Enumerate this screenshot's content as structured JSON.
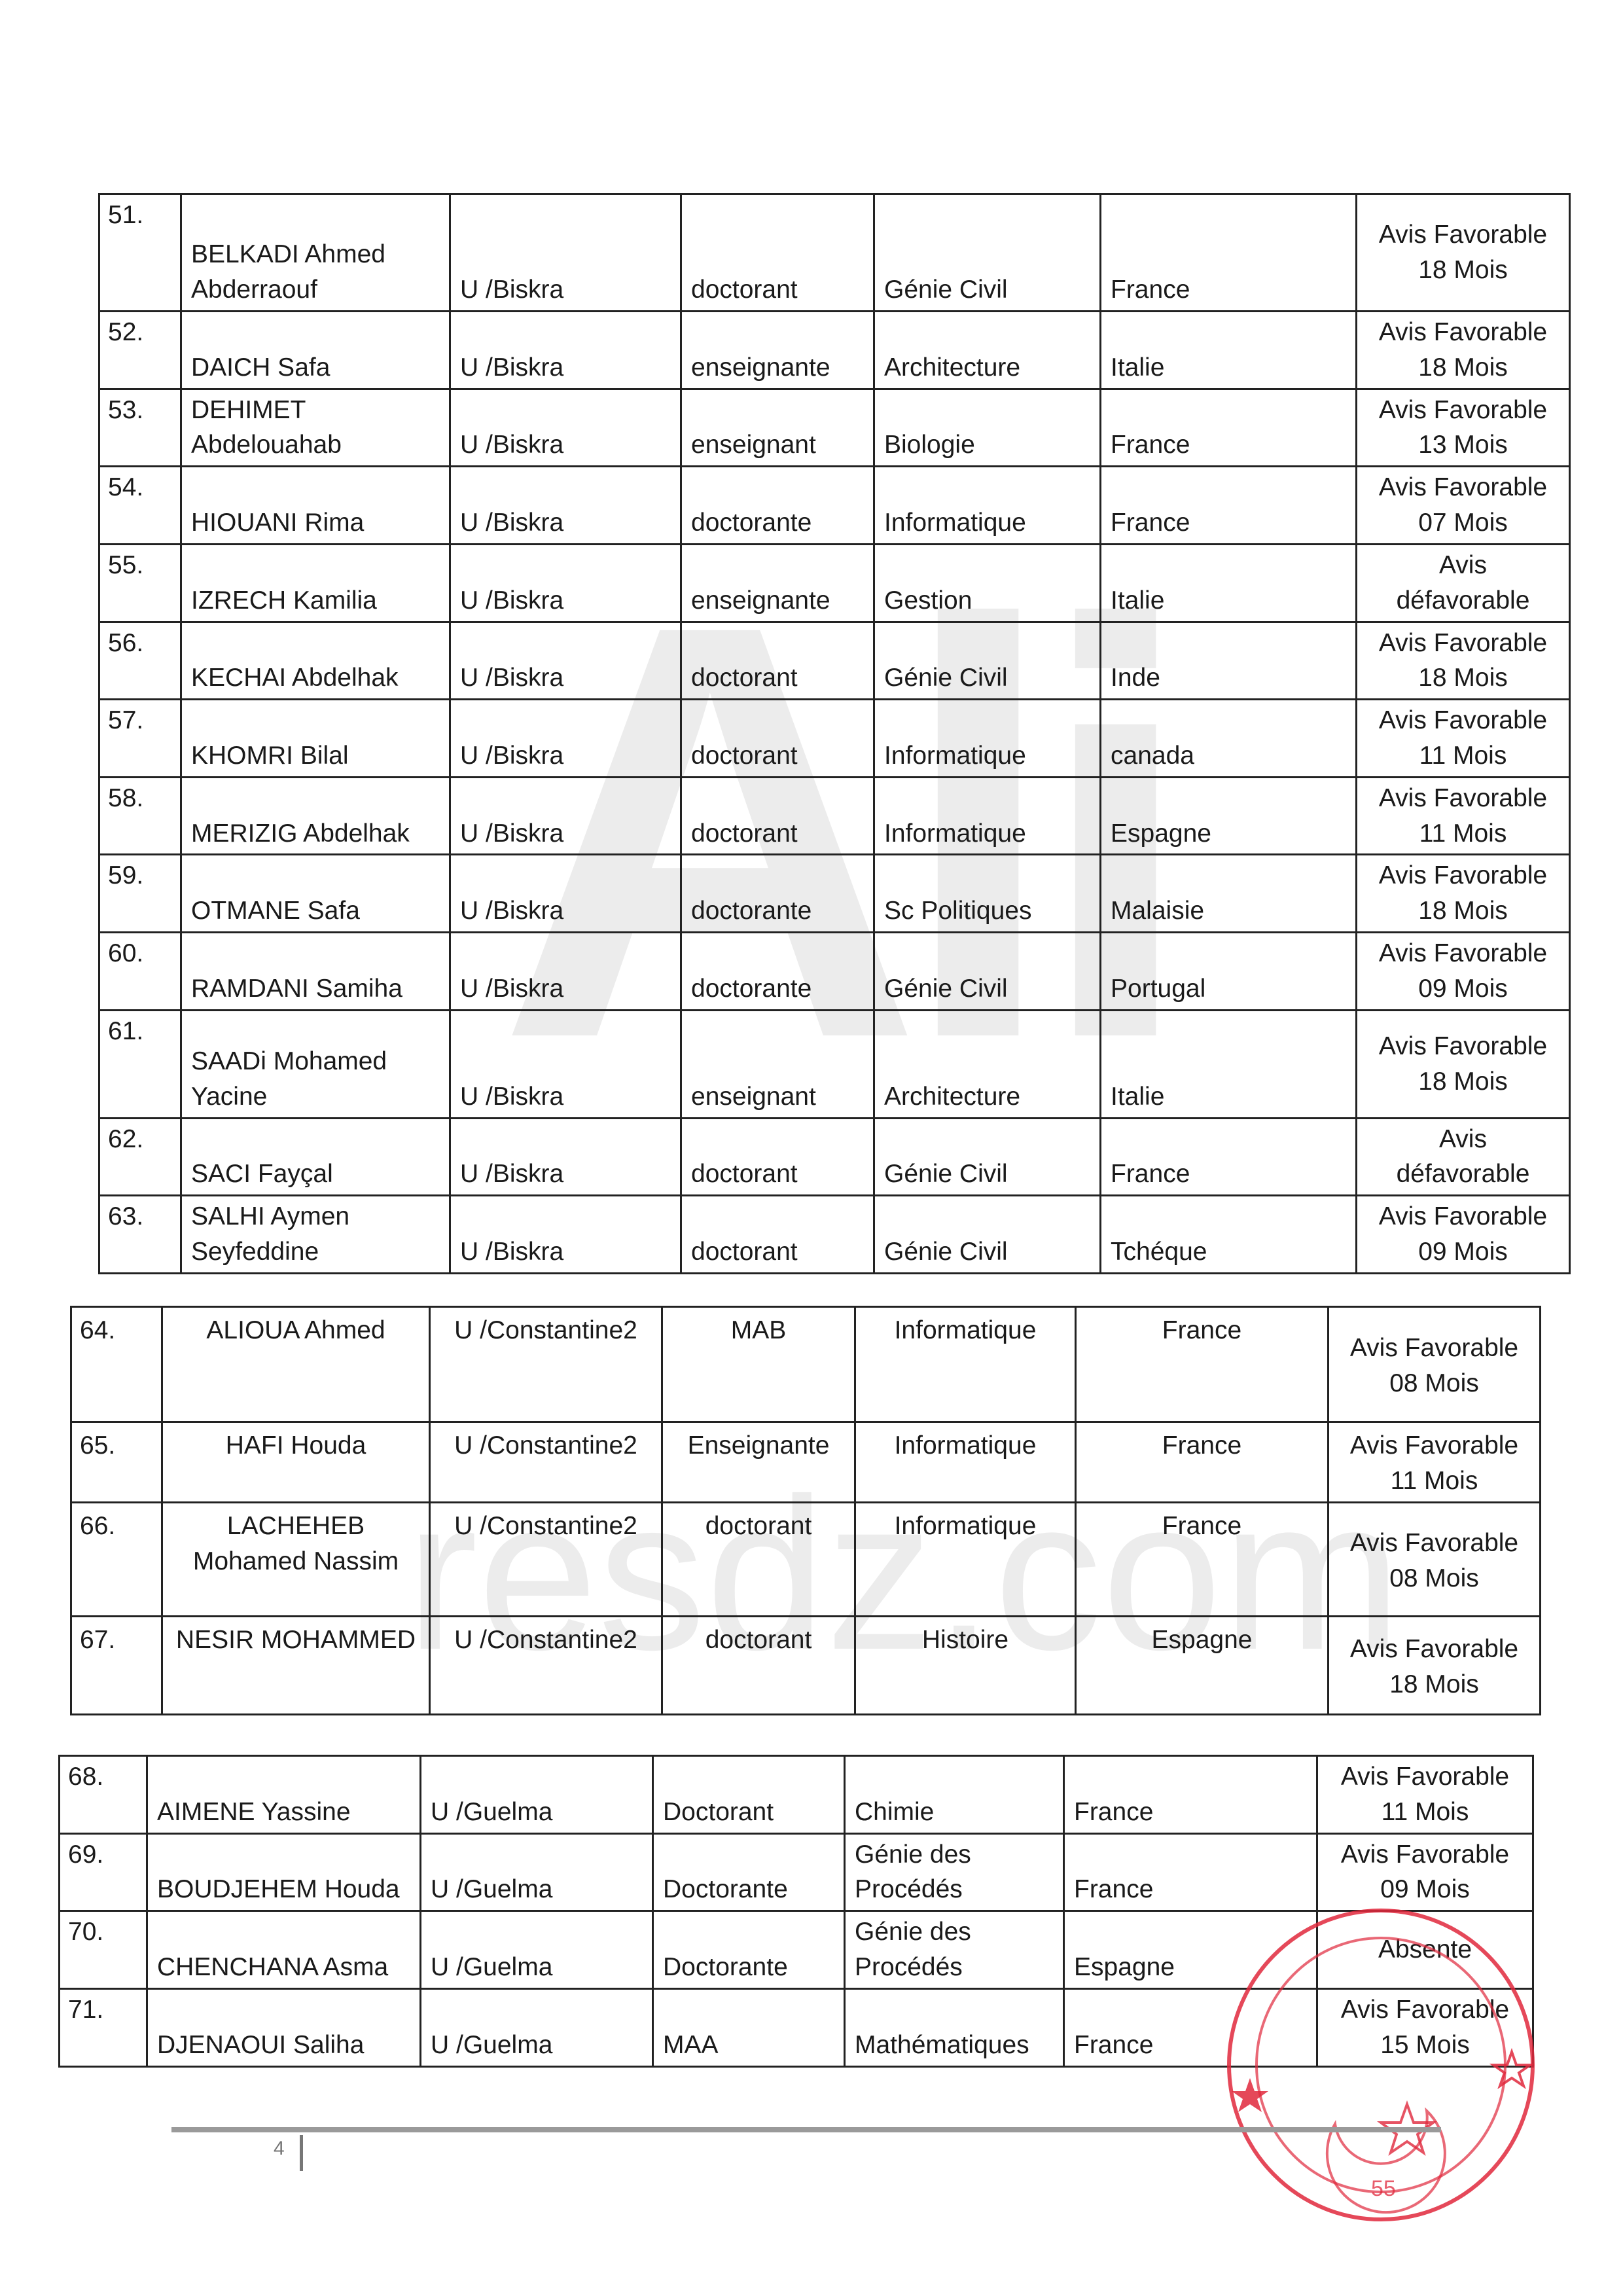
{
  "tables": [
    {
      "rows": [
        {
          "num": "51.",
          "name": "BELKADI Ahmed\nAbderraouf",
          "univ": "U /Biskra",
          "status": "doctorant",
          "field": "Génie Civil",
          "country": "France",
          "avis": "Avis Favorable\n18 Mois"
        },
        {
          "num": "52.",
          "name": "DAICH Safa",
          "univ": "U /Biskra",
          "status": "enseignante",
          "field": "Architecture",
          "country": "Italie",
          "avis": "Avis Favorable\n18 Mois"
        },
        {
          "num": "53.",
          "name": "DEHIMET\nAbdelouahab",
          "univ": "U /Biskra",
          "status": "enseignant",
          "field": "Biologie",
          "country": "France",
          "avis": "Avis Favorable\n13  Mois"
        },
        {
          "num": "54.",
          "name": "HIOUANI Rima",
          "univ": "U /Biskra",
          "status": "doctorante",
          "field": "Informatique",
          "country": "France",
          "avis": "Avis Favorable\n07 Mois"
        },
        {
          "num": "55.",
          "name": "IZRECH Kamilia",
          "univ": "U /Biskra",
          "status": "enseignante",
          "field": "Gestion",
          "country": "Italie",
          "avis": "Avis\ndéfavorable"
        },
        {
          "num": "56.",
          "name": "KECHAI Abdelhak",
          "univ": "U /Biskra",
          "status": "doctorant",
          "field": "Génie Civil",
          "country": "Inde",
          "avis": "Avis Favorable\n18 Mois"
        },
        {
          "num": "57.",
          "name": "KHOMRI Bilal",
          "univ": "U /Biskra",
          "status": "doctorant",
          "field": "Informatique",
          "country": "canada",
          "avis": "Avis Favorable\n11 Mois"
        },
        {
          "num": "58.",
          "name": "MERIZIG Abdelhak",
          "univ": "U /Biskra",
          "status": "doctorant",
          "field": "Informatique",
          "country": "Espagne",
          "avis": "Avis Favorable\n11 Mois"
        },
        {
          "num": "59.",
          "name": "OTMANE Safa",
          "univ": "U /Biskra",
          "status": "doctorante",
          "field": "Sc Politiques",
          "country": "Malaisie",
          "avis": "Avis Favorable\n18 Mois"
        },
        {
          "num": "60.",
          "name": "RAMDANI Samiha",
          "univ": "U /Biskra",
          "status": "doctorante",
          "field": "Génie Civil",
          "country": "Portugal",
          "avis": "Avis Favorable\n09 Mois"
        },
        {
          "num": "61.",
          "name": "SAADi Mohamed\nYacine",
          "univ": "U /Biskra",
          "status": "enseignant",
          "field": "Architecture",
          "country": "Italie",
          "avis": "Avis Favorable\n18 Mois"
        },
        {
          "num": "62.",
          "name": "SACI Fayçal",
          "univ": "U /Biskra",
          "status": "doctorant",
          "field": "Génie Civil",
          "country": "France",
          "avis": "Avis\ndéfavorable"
        },
        {
          "num": "63.",
          "name": "SALHI Aymen\nSeyfeddine",
          "univ": "U /Biskra",
          "status": "doctorant",
          "field": "Génie Civil",
          "country": "Tchéque",
          "avis": "Avis Favorable\n09 Mois"
        }
      ]
    },
    {
      "rows": [
        {
          "num": "64.",
          "name": "ALIOUA Ahmed",
          "univ": "U /Constantine2",
          "status": "MAB",
          "field": "Informatique",
          "country": "France",
          "avis": "Avis Favorable\n08 Mois"
        },
        {
          "num": "65.",
          "name": "HAFI Houda",
          "univ": "U /Constantine2",
          "status": "Enseignante",
          "field": "Informatique",
          "country": "France",
          "avis": "Avis Favorable\n11 Mois"
        },
        {
          "num": "66.",
          "name": "LACHEHEB\nMohamed Nassim",
          "univ": "U /Constantine2",
          "status": "doctorant",
          "field": "Informatique",
          "country": "France",
          "avis": "Avis Favorable\n08 Mois"
        },
        {
          "num": "67.",
          "name": "NESIR MOHAMMED",
          "univ": "U /Constantine2",
          "status": "doctorant",
          "field": "Histoire",
          "country": "Espagne",
          "avis": "Avis Favorable\n18 Mois"
        }
      ]
    },
    {
      "rows": [
        {
          "num": "68.",
          "name": "AIMENE Yassine",
          "univ": "U /Guelma",
          "status": "Doctorant",
          "field": "Chimie",
          "country": "France",
          "avis": "Avis Favorable\n11 Mois"
        },
        {
          "num": "69.",
          "name": "BOUDJEHEM Houda",
          "univ": "U /Guelma",
          "status": "Doctorante",
          "field": "Génie des\nProcédés",
          "country": "France",
          "avis": "Avis Favorable\n09 Mois"
        },
        {
          "num": "70.",
          "name": "CHENCHANA Asma",
          "univ": "U /Guelma",
          "status": "Doctorante",
          "field": "Génie des\nProcédés",
          "country": "Espagne",
          "avis": "Absente"
        },
        {
          "num": "71.",
          "name": "DJENAOUI Saliha",
          "univ": "U /Guelma",
          "status": "MAA",
          "field": "Mathématiques",
          "country": "France",
          "avis": "Avis Favorable\n15 Mois"
        }
      ]
    }
  ],
  "watermark": {
    "text": "resdz.com",
    "letters": "Ali"
  },
  "stamp": {
    "number": "55",
    "color": "#e0283c"
  },
  "footer": {
    "page": "4"
  }
}
